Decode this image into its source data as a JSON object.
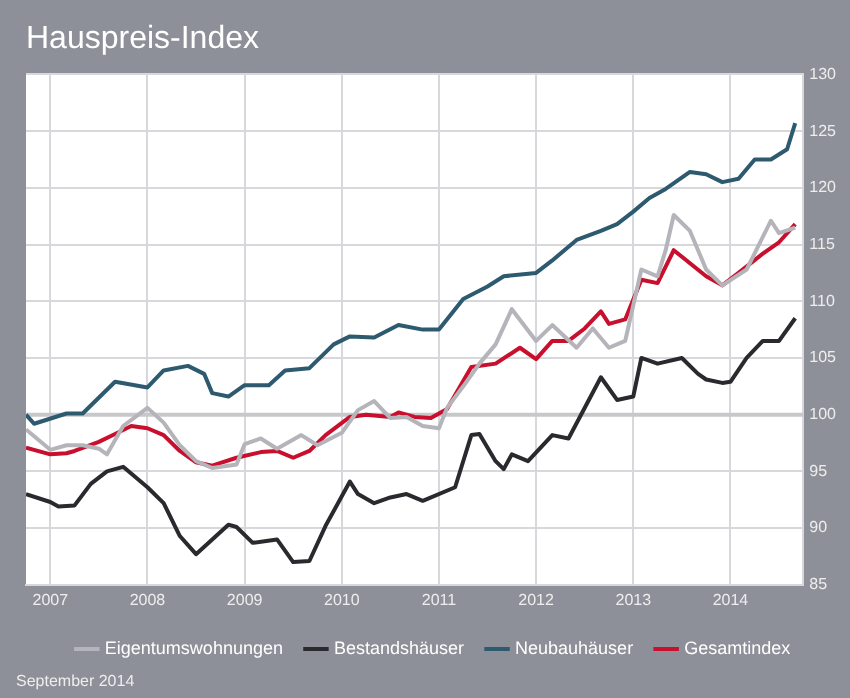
{
  "chart_data": {
    "type": "line",
    "title": "Hauspreis-Index",
    "annotations": [
      "September 2014"
    ],
    "xlim": [
      "2006-10",
      "2014-10"
    ],
    "xticks": [
      "2007",
      "2008",
      "2009",
      "2010",
      "2011",
      "2012",
      "2013",
      "2014"
    ],
    "ylim": [
      85,
      130
    ],
    "yticks": [
      85,
      90,
      95,
      100,
      105,
      110,
      115,
      120,
      125,
      130
    ],
    "grid": true,
    "legend": "bottom",
    "marker": "none",
    "line_style": "solid",
    "ref_lines": [
      {
        "axis": "y",
        "value": 100,
        "color": "#c8c8cc"
      }
    ],
    "series": [
      {
        "name": "Eigentumswohnungen",
        "color": "#b4b4ba",
        "x": [
          "2006-10",
          "2007-01",
          "2007-03",
          "2007-05",
          "2007-07",
          "2007-08",
          "2007-10",
          "2008-01",
          "2008-03",
          "2008-05",
          "2008-07",
          "2008-09",
          "2008-12",
          "2009-01",
          "2009-03",
          "2009-05",
          "2009-08",
          "2009-10",
          "2010-01",
          "2010-03",
          "2010-05",
          "2010-07",
          "2010-09",
          "2010-11",
          "2011-01",
          "2011-02",
          "2011-04",
          "2011-06",
          "2011-08",
          "2011-10",
          "2012-01",
          "2012-03",
          "2012-06",
          "2012-08",
          "2012-10",
          "2012-12",
          "2013-02",
          "2013-04",
          "2013-05",
          "2013-06",
          "2013-08",
          "2013-10",
          "2013-12",
          "2014-03",
          "2014-06",
          "2014-07",
          "2014-09"
        ],
        "values": [
          98.7,
          96.9,
          97.3,
          97.3,
          97.0,
          96.5,
          99.0,
          100.6,
          99.3,
          97.3,
          95.9,
          95.3,
          95.6,
          97.4,
          97.9,
          97.0,
          98.2,
          97.3,
          98.4,
          100.4,
          101.2,
          99.7,
          99.8,
          99.0,
          98.8,
          100.6,
          102.5,
          104.5,
          106.2,
          109.3,
          106.5,
          107.9,
          105.9,
          107.6,
          105.9,
          106.5,
          112.8,
          112.2,
          114.5,
          117.6,
          116.2,
          112.8,
          111.4,
          112.8,
          117.1,
          116.0,
          116.5
        ]
      },
      {
        "name": "Bestandshäuser",
        "color": "#2a2a2e",
        "x": [
          "2006-10",
          "2007-01",
          "2007-02",
          "2007-04",
          "2007-06",
          "2007-08",
          "2007-10",
          "2008-01",
          "2008-03",
          "2008-05",
          "2008-07",
          "2008-09",
          "2008-11",
          "2008-12",
          "2009-02",
          "2009-05",
          "2009-07",
          "2009-09",
          "2009-11",
          "2010-02",
          "2010-03",
          "2010-05",
          "2010-07",
          "2010-09",
          "2010-11",
          "2011-03",
          "2011-05",
          "2011-06",
          "2011-08",
          "2011-09",
          "2011-10",
          "2011-12",
          "2012-03",
          "2012-05",
          "2012-09",
          "2012-11",
          "2013-01",
          "2013-02",
          "2013-04",
          "2013-07",
          "2013-09",
          "2013-10",
          "2013-12",
          "2014-01",
          "2014-03",
          "2014-05",
          "2014-07",
          "2014-09"
        ],
        "values": [
          93.0,
          92.3,
          91.9,
          92.0,
          93.9,
          95.0,
          95.4,
          93.6,
          92.2,
          89.3,
          87.7,
          89.0,
          90.3,
          90.1,
          88.7,
          89.0,
          87.0,
          87.1,
          90.2,
          94.1,
          93.0,
          92.2,
          92.7,
          93.0,
          92.4,
          93.6,
          98.2,
          98.3,
          95.9,
          95.2,
          96.5,
          95.9,
          98.2,
          97.9,
          103.3,
          101.3,
          101.6,
          105.0,
          104.5,
          105.0,
          103.6,
          103.1,
          102.8,
          102.9,
          105.0,
          106.5,
          106.5,
          108.5
        ]
      },
      {
        "name": "Neubauhäuser",
        "color": "#2e5a70",
        "x": [
          "2006-10",
          "2006-11",
          "2007-03",
          "2007-05",
          "2007-09",
          "2008-01",
          "2008-03",
          "2008-06",
          "2008-08",
          "2008-09",
          "2008-11",
          "2009-01",
          "2009-04",
          "2009-06",
          "2009-09",
          "2009-12",
          "2010-02",
          "2010-05",
          "2010-08",
          "2010-11",
          "2011-01",
          "2011-04",
          "2011-07",
          "2011-09",
          "2012-01",
          "2012-03",
          "2012-06",
          "2012-09",
          "2012-11",
          "2013-01",
          "2013-03",
          "2013-05",
          "2013-08",
          "2013-10",
          "2013-12",
          "2014-02",
          "2014-04",
          "2014-06",
          "2014-08",
          "2014-09"
        ],
        "values": [
          100.0,
          99.2,
          100.1,
          100.1,
          102.9,
          102.4,
          103.9,
          104.3,
          103.6,
          101.9,
          101.6,
          102.6,
          102.6,
          103.9,
          104.1,
          106.2,
          106.9,
          106.8,
          107.9,
          107.5,
          107.5,
          110.2,
          111.3,
          112.2,
          112.5,
          113.6,
          115.4,
          116.2,
          116.8,
          117.9,
          119.1,
          119.9,
          121.4,
          121.2,
          120.5,
          120.8,
          122.5,
          122.5,
          123.4,
          125.7
        ]
      },
      {
        "name": "Gesamtindex",
        "color": "#c8102e",
        "x": [
          "2006-10",
          "2007-01",
          "2007-03",
          "2007-04",
          "2007-07",
          "2007-09",
          "2007-11",
          "2008-01",
          "2008-03",
          "2008-05",
          "2008-07",
          "2008-09",
          "2008-12",
          "2009-03",
          "2009-05",
          "2009-07",
          "2009-09",
          "2009-11",
          "2010-02",
          "2010-04",
          "2010-07",
          "2010-08",
          "2010-10",
          "2010-12",
          "2011-02",
          "2011-05",
          "2011-08",
          "2011-11",
          "2012-01",
          "2012-03",
          "2012-05",
          "2012-07",
          "2012-09",
          "2012-10",
          "2012-12",
          "2013-02",
          "2013-04",
          "2013-06",
          "2013-10",
          "2013-12",
          "2014-02",
          "2014-05",
          "2014-07",
          "2014-09"
        ],
        "values": [
          97.1,
          96.5,
          96.6,
          96.8,
          97.6,
          98.3,
          99.0,
          98.8,
          98.2,
          96.8,
          95.8,
          95.5,
          96.2,
          96.7,
          96.8,
          96.2,
          96.8,
          98.2,
          99.8,
          100.0,
          99.8,
          100.2,
          99.8,
          99.7,
          100.5,
          104.2,
          104.5,
          105.9,
          104.9,
          106.5,
          106.5,
          107.6,
          109.1,
          108.0,
          108.4,
          111.9,
          111.6,
          114.5,
          112.2,
          111.4,
          112.5,
          114.2,
          115.2,
          116.8
        ]
      }
    ]
  }
}
